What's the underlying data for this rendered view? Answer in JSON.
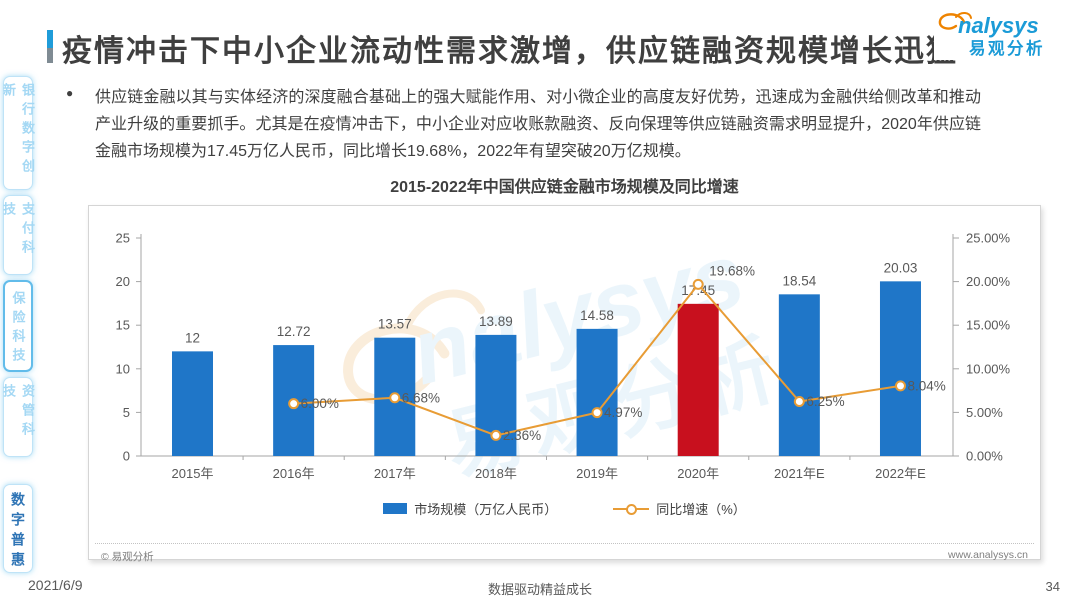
{
  "header": {
    "title": "疫情冲击下中小企业流动性需求激增，供应链融资规模增长迅猛",
    "logo_brand": "nalysys",
    "logo_cn": "易观分析"
  },
  "sidebar": {
    "items": [
      {
        "label": "银行数字创新",
        "active": false,
        "emphasized": false
      },
      {
        "label": "支付科技",
        "active": false,
        "emphasized": false
      },
      {
        "label": "保险科技",
        "active": false,
        "emphasized": true
      },
      {
        "label": "资管科技",
        "active": false,
        "emphasized": false
      },
      {
        "label": "数字普惠",
        "active": true,
        "emphasized": false
      }
    ]
  },
  "intro": {
    "bullet": "●",
    "text": "供应链金融以其与实体经济的深度融合基础上的强大赋能作用、对小微企业的高度友好优势，迅速成为金融供给侧改革和推动产业升级的重要抓手。尤其是在疫情冲击下，中小企业对应收账款融资、反向保理等供应链融资需求明显提升，2020年供应链金融市场规模为17.45万亿人民币，同比增长19.68%，2022年有望突破20万亿规模。"
  },
  "chart": {
    "title": "2015-2022年中国供应链金融市场规模及同比增速",
    "source": "© 易观分析",
    "site": "www.analysys.cn",
    "legend": [
      {
        "label": "市场规模（万亿人民币）",
        "type": "bar"
      },
      {
        "label": "同比增速（%）",
        "type": "line"
      }
    ]
  },
  "chart_data": {
    "type": "bar",
    "title": "2015-2022年中国供应链金融市场规模及同比增速",
    "categories": [
      "2015年",
      "2016年",
      "2017年",
      "2018年",
      "2019年",
      "2020年",
      "2021年E",
      "2022年E"
    ],
    "series": [
      {
        "name": "市场规模（万亿人民币）",
        "type": "bar",
        "values": [
          12,
          12.72,
          13.57,
          13.89,
          14.58,
          17.45,
          18.54,
          20.03
        ],
        "labels": [
          "12",
          "12.72",
          "13.57",
          "13.89",
          "14.58",
          "17.45",
          "18.54",
          "20.03"
        ],
        "highlight_index": 5
      },
      {
        "name": "同比增速（%）",
        "type": "line",
        "values": [
          null,
          6.0,
          6.68,
          2.36,
          4.97,
          19.68,
          6.25,
          8.04
        ],
        "labels": [
          null,
          "6.00%",
          "6.68%",
          "2.36%",
          "4.97%",
          "19.68%",
          "6.25%",
          "8.04%"
        ]
      }
    ],
    "left_axis": {
      "min": 0,
      "max": 25,
      "ticks": [
        "0",
        "5",
        "10",
        "15",
        "20",
        "25"
      ]
    },
    "right_axis": {
      "min": 0,
      "max": 25,
      "ticks": [
        "0.00%",
        "5.00%",
        "10.00%",
        "15.00%",
        "20.00%",
        "25.00%"
      ]
    },
    "legend_position": "bottom",
    "grid": false,
    "colors": {
      "bar": "#1f76c8",
      "bar_highlight": "#c8101e",
      "line": "#e89c35",
      "axis": "#a6a6a6",
      "tick_text": "#595959"
    }
  },
  "footer": {
    "date": "2021/6/9",
    "slogan": "数据驱动精益成长",
    "page_number": "34"
  }
}
